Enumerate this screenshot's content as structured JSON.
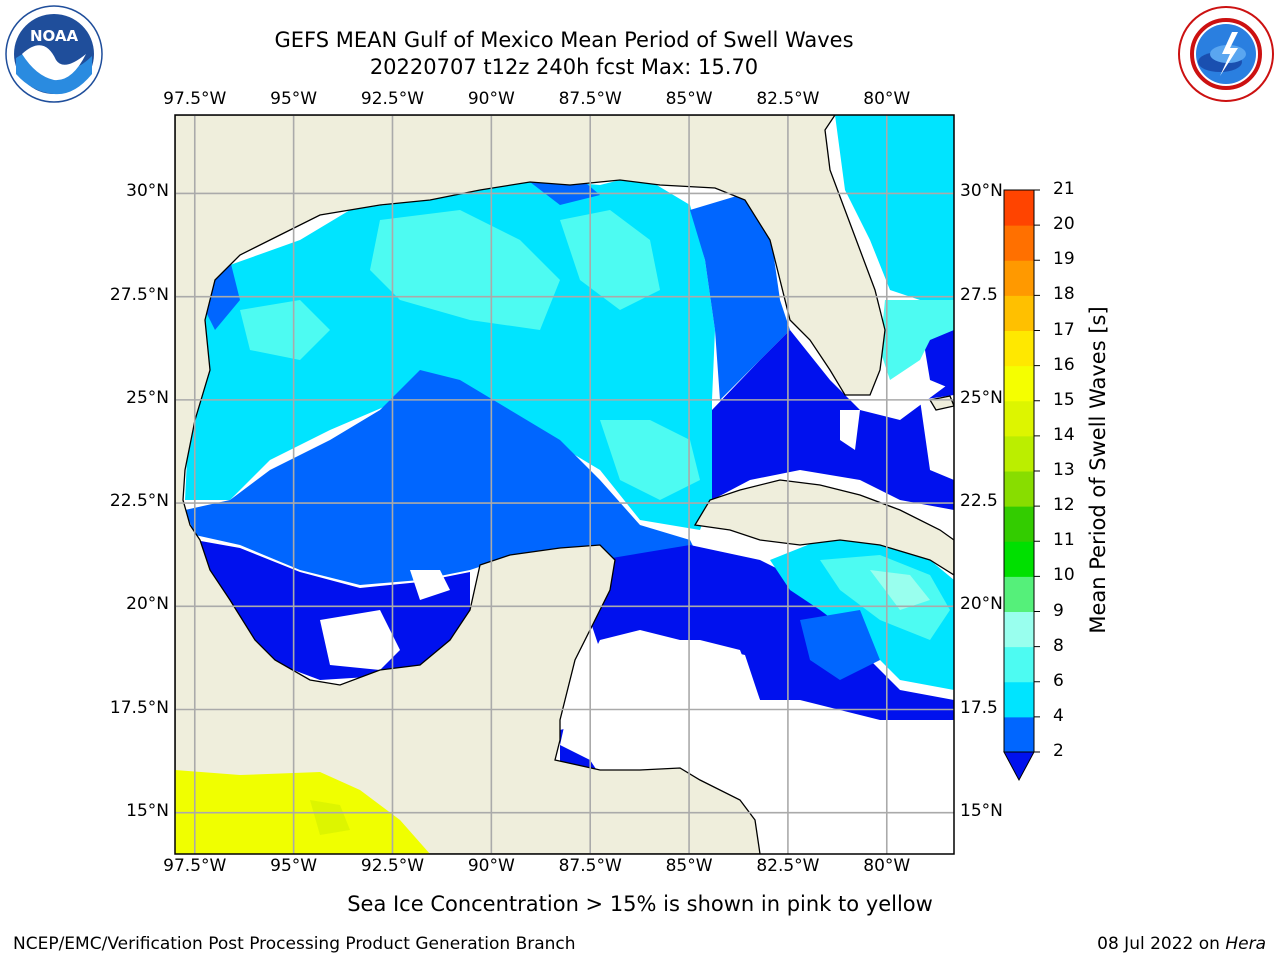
{
  "title": {
    "line1": "GEFS MEAN Gulf of Mexico Mean Period of Swell Waves",
    "line2": "20220707 t12z 240h fcst   Max: 15.70"
  },
  "axes": {
    "lon_ticks": [
      "97.5°W",
      "95°W",
      "92.5°W",
      "90°W",
      "87.5°W",
      "85°W",
      "82.5°W",
      "80°W"
    ],
    "lon_values": [
      -97.5,
      -95,
      -92.5,
      -90,
      -87.5,
      -85,
      -82.5,
      -80
    ],
    "lat_ticks_left": [
      "30°N",
      "27.5°N",
      "25°N",
      "22.5°N",
      "20°N",
      "17.5°N",
      "15°N"
    ],
    "lat_ticks_right": [
      "30°N",
      "27.5",
      "25°N",
      "22.5",
      "20°N",
      "17.5",
      "15°N"
    ],
    "lat_values": [
      30,
      27.5,
      25,
      22.5,
      20,
      17.5,
      15
    ],
    "lon_range": [
      -98,
      -78.3
    ],
    "lat_range": [
      14,
      31.9
    ],
    "grid": true
  },
  "colorbar": {
    "title": "Mean Period of Swell Waves [s]",
    "levels": [
      "2",
      "4",
      "6",
      "8",
      "9",
      "10",
      "11",
      "12",
      "13",
      "14",
      "15",
      "16",
      "17",
      "18",
      "19",
      "20",
      "21"
    ],
    "colors": [
      "#0066ff",
      "#00e4ff",
      "#4dfbf2",
      "#99ffee",
      "#55f07a",
      "#00e000",
      "#33cc00",
      "#88dd00",
      "#bbee00",
      "#ddf500",
      "#f5ff00",
      "#ffe800",
      "#ffc000",
      "#ff9900",
      "#ff7000",
      "#ff4400",
      "#ff1100"
    ],
    "under_color": "#0011ee",
    "land_color": "#efeedc",
    "ice_color": "#f0ff00"
  },
  "footnote": "Sea Ice Concentration > 15% is shown in pink to yellow",
  "credit": "NCEP/EMC/Verification Post Processing Product Generation Branch",
  "date_text": "08 Jul 2022 on ",
  "date_host": "Hera",
  "logos": {
    "left": "noaa-logo",
    "right": "nws-logo",
    "noaa_text": "NOAA"
  }
}
